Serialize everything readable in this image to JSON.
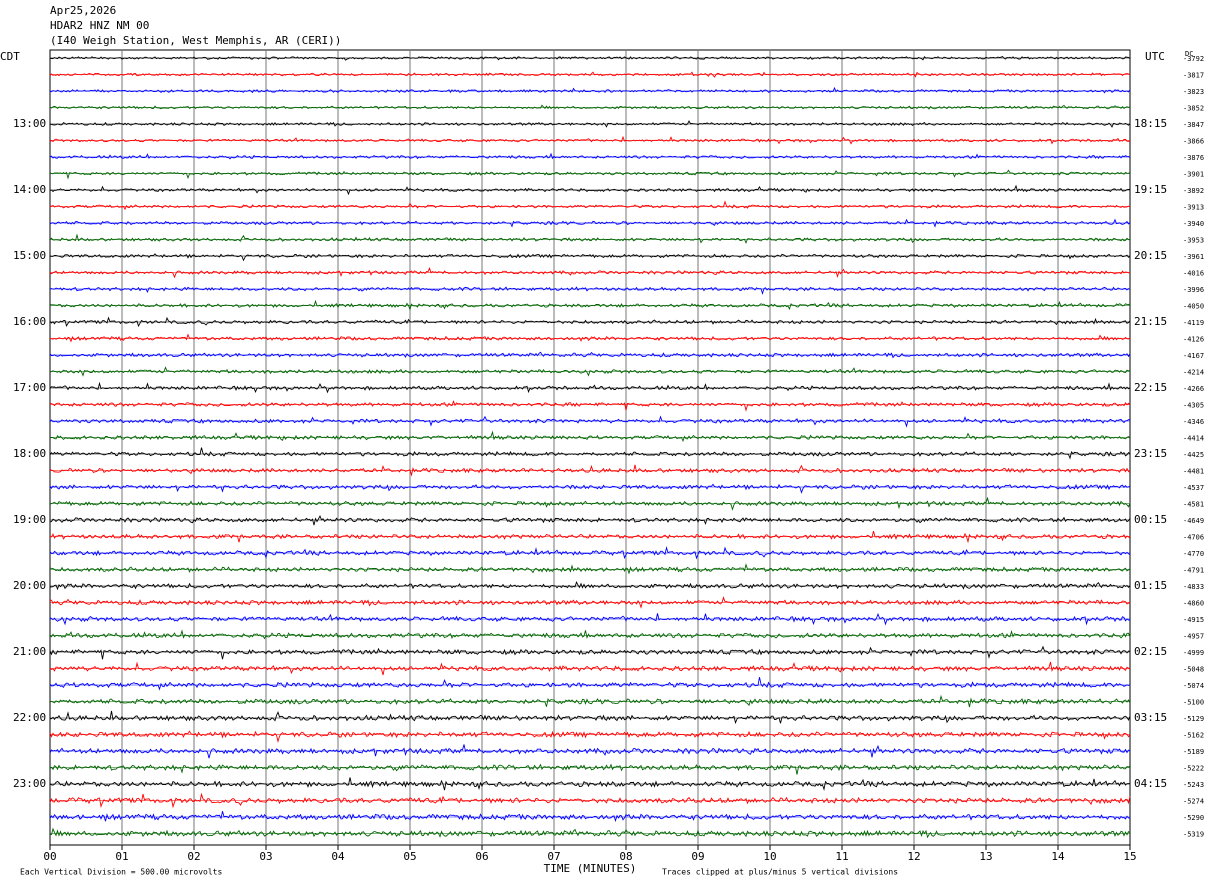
{
  "chart_data": {
    "type": "helicorder",
    "date": "Apr25,2026",
    "station": "HDAR2 HNZ NM 00",
    "location": "(I40 Weigh Station, West Memphis, AR (CERI))",
    "left_header": "CDT",
    "right_header": "UTC",
    "dc_header": "DC",
    "left_labels": [
      "13:00",
      "14:00",
      "15:00",
      "16:00",
      "17:00",
      "18:00",
      "19:00",
      "20:00",
      "21:00",
      "22:00",
      "23:00"
    ],
    "right_labels": [
      "18:15",
      "19:15",
      "20:15",
      "21:15",
      "22:15",
      "23:15",
      "00:15",
      "01:15",
      "02:15",
      "03:15",
      "04:15"
    ],
    "dc_offsets": [
      -3792,
      -3817,
      -3823,
      -3852,
      -3847,
      -3866,
      -3876,
      -3901,
      -3892,
      -3913,
      -3940,
      -3953,
      -3961,
      -4016,
      -3996,
      -4050,
      -4119,
      -4126,
      -4167,
      -4214,
      -4266,
      -4305,
      -4346,
      -4414,
      -4425,
      -4481,
      -4537,
      -4581,
      -4649,
      -4706,
      -4770,
      -4791,
      -4833,
      -4860,
      -4915,
      -4957,
      -4999,
      -5048,
      -5074,
      -5100,
      -5129,
      -5162,
      -5189,
      -5222,
      -5243,
      -5274,
      -5290,
      -5319
    ],
    "x_labels": [
      "00",
      "01",
      "02",
      "03",
      "04",
      "05",
      "06",
      "07",
      "08",
      "09",
      "10",
      "11",
      "12",
      "13",
      "14",
      "15"
    ],
    "x_title": "TIME (MINUTES)",
    "scale_note": "Each Vertical Division =  500.00 microvolts",
    "clip_note": "Traces clipped at plus/minus 5 vertical divisions",
    "colors": [
      "#000000",
      "#ff0000",
      "#0000ff",
      "#006400"
    ]
  }
}
